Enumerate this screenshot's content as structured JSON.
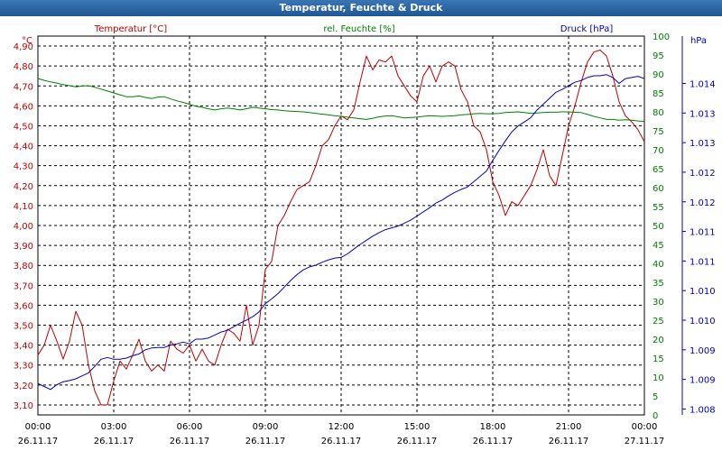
{
  "window": {
    "title": "Temperatur, Feuchte & Druck"
  },
  "chart_data": {
    "type": "line",
    "title": "Temperatur, Feuchte & Druck",
    "x_ticks": [
      {
        "time": "00:00",
        "date": "26.11.17"
      },
      {
        "time": "03:00",
        "date": "26.11.17"
      },
      {
        "time": "06:00",
        "date": "26.11.17"
      },
      {
        "time": "09:00",
        "date": "26.11.17"
      },
      {
        "time": "12:00",
        "date": "26.11.17"
      },
      {
        "time": "15:00",
        "date": "26.11.17"
      },
      {
        "time": "18:00",
        "date": "26.11.17"
      },
      {
        "time": "21:00",
        "date": "26.11.17"
      },
      {
        "time": "00:00",
        "date": "27.11.17"
      }
    ],
    "xlim": [
      0,
      24
    ],
    "axes": {
      "temperature": {
        "label": "Temperatur [°C]",
        "unit": "°C",
        "color": "#c00000",
        "ylim": [
          3.05,
          4.95
        ],
        "ticks": [
          "3,10",
          "3,20",
          "3,30",
          "3,40",
          "3,50",
          "3,60",
          "3,70",
          "3,80",
          "3,90",
          "4,00",
          "4,10",
          "4,20",
          "4,30",
          "4,40",
          "4,50",
          "4,60",
          "4,70",
          "4,80",
          "4,90"
        ],
        "tick_values": [
          3.1,
          3.2,
          3.3,
          3.4,
          3.5,
          3.6,
          3.7,
          3.8,
          3.9,
          4.0,
          4.1,
          4.2,
          4.3,
          4.4,
          4.5,
          4.6,
          4.7,
          4.8,
          4.9
        ]
      },
      "humidity": {
        "label": "rel. Feuchte [%]",
        "unit": "%",
        "color": "#008000",
        "ylim": [
          0,
          100
        ],
        "ticks": [
          "0",
          "5",
          "10",
          "15",
          "20",
          "25",
          "30",
          "35",
          "40",
          "45",
          "50",
          "55",
          "60",
          "65",
          "70",
          "75",
          "80",
          "85",
          "90",
          "95",
          "100"
        ],
        "tick_values": [
          0,
          5,
          10,
          15,
          20,
          25,
          30,
          35,
          40,
          45,
          50,
          55,
          60,
          65,
          70,
          75,
          80,
          85,
          90,
          95,
          100
        ]
      },
      "pressure": {
        "label": "Druck [hPa]",
        "unit": "hPa",
        "color": "#0000c0",
        "ylim": [
          1007.9,
          1014.3
        ],
        "ticks": [
          "1.008",
          "1.009",
          "1.009",
          "1.010",
          "1.010",
          "1.011",
          "1.011",
          "1.012",
          "1.012",
          "1.013",
          "1.013",
          "1.014"
        ],
        "tick_values": [
          1008.0,
          1008.5,
          1009.0,
          1009.5,
          1010.0,
          1010.5,
          1011.0,
          1011.5,
          1012.0,
          1012.5,
          1013.0,
          1013.5
        ]
      }
    },
    "series": [
      {
        "name": "Temperatur [°C]",
        "axis": "temperature",
        "x": [
          0,
          0.25,
          0.5,
          0.75,
          1,
          1.25,
          1.5,
          1.75,
          2,
          2.25,
          2.5,
          2.75,
          3,
          3.25,
          3.5,
          3.75,
          4,
          4.25,
          4.5,
          4.75,
          5,
          5.25,
          5.5,
          5.75,
          6,
          6.25,
          6.5,
          6.75,
          7,
          7.25,
          7.5,
          7.75,
          8,
          8.25,
          8.5,
          8.75,
          9,
          9.25,
          9.5,
          9.75,
          10,
          10.25,
          10.5,
          10.75,
          11,
          11.25,
          11.5,
          11.75,
          12,
          12.25,
          12.5,
          12.75,
          13,
          13.25,
          13.5,
          13.75,
          14,
          14.25,
          14.5,
          14.75,
          15,
          15.25,
          15.5,
          15.75,
          16,
          16.25,
          16.5,
          16.75,
          17,
          17.25,
          17.5,
          17.75,
          18,
          18.25,
          18.5,
          18.75,
          19,
          19.25,
          19.5,
          19.75,
          20,
          20.25,
          20.5,
          20.75,
          21,
          21.25,
          21.5,
          21.75,
          22,
          22.25,
          22.5,
          22.75,
          23,
          23.25,
          23.5,
          23.75,
          24
        ],
        "values": [
          3.35,
          3.4,
          3.5,
          3.42,
          3.33,
          3.42,
          3.57,
          3.5,
          3.3,
          3.17,
          3.1,
          3.1,
          3.22,
          3.32,
          3.28,
          3.35,
          3.43,
          3.32,
          3.27,
          3.3,
          3.27,
          3.42,
          3.38,
          3.36,
          3.4,
          3.32,
          3.38,
          3.32,
          3.3,
          3.4,
          3.48,
          3.46,
          3.42,
          3.6,
          3.4,
          3.5,
          3.78,
          3.82,
          4.0,
          4.05,
          4.12,
          4.18,
          4.2,
          4.22,
          4.3,
          4.4,
          4.43,
          4.5,
          4.55,
          4.53,
          4.58,
          4.72,
          4.85,
          4.78,
          4.83,
          4.82,
          4.85,
          4.75,
          4.7,
          4.65,
          4.62,
          4.75,
          4.8,
          4.72,
          4.8,
          4.82,
          4.8,
          4.68,
          4.62,
          4.5,
          4.47,
          4.38,
          4.22,
          4.15,
          4.05,
          4.12,
          4.1,
          4.15,
          4.2,
          4.28,
          4.38,
          4.25,
          4.2,
          4.35,
          4.5,
          4.6,
          4.72,
          4.82,
          4.87,
          4.88,
          4.85,
          4.75,
          4.62,
          4.55,
          4.52,
          4.48,
          4.42
        ]
      },
      {
        "name": "rel. Feuchte [%]",
        "axis": "humidity",
        "x": [
          0,
          0.25,
          0.5,
          0.75,
          1,
          1.25,
          1.5,
          1.75,
          2,
          2.25,
          2.5,
          2.75,
          3,
          3.25,
          3.5,
          3.75,
          4,
          4.25,
          4.5,
          4.75,
          5,
          5.25,
          5.5,
          5.75,
          6,
          6.25,
          6.5,
          6.75,
          7,
          7.25,
          7.5,
          7.75,
          8,
          8.25,
          8.5,
          8.75,
          9,
          9.25,
          9.5,
          9.75,
          10,
          10.25,
          10.5,
          10.75,
          11,
          11.25,
          11.5,
          11.75,
          12,
          12.25,
          12.5,
          12.75,
          13,
          13.25,
          13.5,
          13.75,
          14,
          14.25,
          14.5,
          14.75,
          15,
          15.25,
          15.5,
          15.75,
          16,
          16.25,
          16.5,
          16.75,
          17,
          17.25,
          17.5,
          17.75,
          18,
          18.25,
          18.5,
          18.75,
          19,
          19.25,
          19.5,
          19.75,
          20,
          20.25,
          20.5,
          20.75,
          21,
          21.25,
          21.5,
          21.75,
          22,
          22.25,
          22.5,
          22.75,
          23,
          23.25,
          23.5,
          23.75,
          24
        ],
        "values": [
          88.8,
          88.3,
          87.9,
          87.6,
          87.2,
          86.9,
          86.6,
          86.8,
          86.9,
          86.5,
          86.0,
          85.5,
          85.0,
          84.5,
          84.0,
          84.0,
          84.2,
          83.8,
          83.5,
          83.9,
          84.0,
          83.4,
          82.9,
          82.5,
          82.0,
          81.5,
          81.2,
          80.8,
          80.5,
          80.8,
          81.0,
          80.8,
          80.5,
          80.8,
          81.2,
          81.0,
          80.8,
          80.6,
          80.5,
          80.3,
          80.2,
          80.1,
          80.0,
          79.8,
          79.6,
          79.4,
          79.2,
          79.0,
          78.8,
          78.6,
          78.4,
          78.2,
          78.0,
          78.3,
          78.7,
          78.9,
          79.0,
          78.7,
          78.4,
          78.5,
          78.6,
          78.8,
          79.0,
          78.9,
          78.8,
          78.9,
          79.0,
          79.2,
          79.3,
          79.5,
          79.6,
          79.5,
          79.5,
          79.6,
          79.8,
          79.9,
          80.0,
          79.8,
          79.6,
          79.7,
          79.8,
          79.9,
          79.9,
          80.0,
          80.0,
          79.9,
          79.8,
          79.3,
          78.8,
          78.4,
          78.0,
          78.0,
          77.8,
          77.9,
          77.8,
          77.6,
          77.5
        ]
      },
      {
        "name": "Druck [hPa]",
        "axis": "pressure",
        "x": [
          0,
          0.25,
          0.5,
          0.75,
          1,
          1.25,
          1.5,
          1.75,
          2,
          2.25,
          2.5,
          2.75,
          3,
          3.25,
          3.5,
          3.75,
          4,
          4.25,
          4.5,
          4.75,
          5,
          5.25,
          5.5,
          5.75,
          6,
          6.25,
          6.5,
          6.75,
          7,
          7.25,
          7.5,
          7.75,
          8,
          8.25,
          8.5,
          8.75,
          9,
          9.25,
          9.5,
          9.75,
          10,
          10.25,
          10.5,
          10.75,
          11,
          11.25,
          11.5,
          11.75,
          12,
          12.25,
          12.5,
          12.75,
          13,
          13.25,
          13.5,
          13.75,
          14,
          14.25,
          14.5,
          14.75,
          15,
          15.25,
          15.5,
          15.75,
          16,
          16.25,
          16.5,
          16.75,
          17,
          17.25,
          17.5,
          17.75,
          18,
          18.25,
          18.5,
          18.75,
          19,
          19.25,
          19.5,
          19.75,
          20,
          20.25,
          20.5,
          20.75,
          21,
          21.25,
          21.5,
          21.75,
          22,
          22.25,
          22.5,
          22.75,
          23,
          23.25,
          23.5,
          23.75,
          24
        ],
        "values": [
          1008.43,
          1008.38,
          1008.33,
          1008.41,
          1008.46,
          1008.48,
          1008.51,
          1008.56,
          1008.61,
          1008.72,
          1008.84,
          1008.87,
          1008.84,
          1008.84,
          1008.86,
          1008.9,
          1008.93,
          1009.0,
          1009.03,
          1009.04,
          1009.04,
          1009.08,
          1009.1,
          1009.13,
          1009.1,
          1009.18,
          1009.18,
          1009.2,
          1009.25,
          1009.3,
          1009.33,
          1009.39,
          1009.45,
          1009.5,
          1009.56,
          1009.64,
          1009.78,
          1009.86,
          1009.95,
          1010.06,
          1010.17,
          1010.27,
          1010.35,
          1010.4,
          1010.43,
          1010.48,
          1010.52,
          1010.55,
          1010.56,
          1010.62,
          1010.7,
          1010.78,
          1010.85,
          1010.92,
          1010.98,
          1011.03,
          1011.06,
          1011.09,
          1011.14,
          1011.19,
          1011.26,
          1011.33,
          1011.4,
          1011.48,
          1011.53,
          1011.6,
          1011.66,
          1011.71,
          1011.75,
          1011.84,
          1011.93,
          1012.02,
          1012.2,
          1012.37,
          1012.53,
          1012.68,
          1012.78,
          1012.85,
          1012.92,
          1013.05,
          1013.15,
          1013.25,
          1013.35,
          1013.4,
          1013.46,
          1013.52,
          1013.55,
          1013.6,
          1013.63,
          1013.63,
          1013.65,
          1013.6,
          1013.5,
          1013.58,
          1013.6,
          1013.62,
          1013.58
        ]
      }
    ],
    "grid": true,
    "legend": "top, one label per axis"
  }
}
